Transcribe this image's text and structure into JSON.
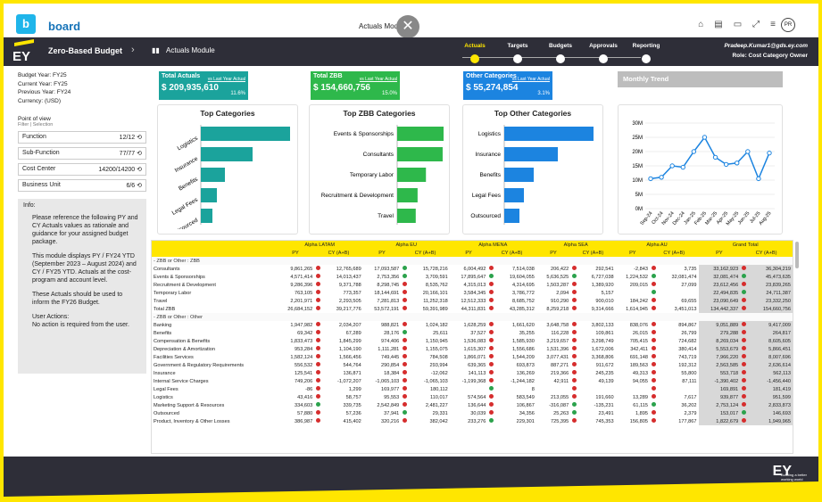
{
  "app": {
    "logo_letter": "b",
    "logo_text": "board",
    "window_title": "Actuals Module",
    "avatar": "PR"
  },
  "header": {
    "app_name": "Zero-Based Budget",
    "module": "Actuals Module",
    "ey": "EY",
    "user": "Pradeep.Kumar1@gds.ey.com",
    "role": "Role: Cost Category Owner",
    "steps": [
      "Actuals",
      "Targets",
      "Budgets",
      "Approvals",
      "Reporting"
    ],
    "active_step": 0
  },
  "meta": [
    "Budget Year:  FY25",
    "Current Year:  FY25",
    "Previous Year: FY24",
    "Currency: (USD)"
  ],
  "pov": {
    "title": "Point of view",
    "sub": "Filter | Selection"
  },
  "filters": [
    {
      "label": "Function",
      "value": "12/12"
    },
    {
      "label": "Sub-Function",
      "value": "77/77"
    },
    {
      "label": "Cost Center",
      "value": "14200/14200"
    },
    {
      "label": "Business Unit",
      "value": "6/6"
    }
  ],
  "info": {
    "title": "Info:",
    "paras": [
      "Please reference the following PY and CY Actuals values as rationale and guidance for your assigned budget package.",
      "This module displays PY / FY24 YTD (September 2023 – August 2024) and CY / FY25 YTD. Actuals at the cost-program and account level.",
      "These Actuals should be used to inform the FY26 Budget.",
      "User Actions:\nNo action is required from the user."
    ]
  },
  "kpis": [
    {
      "title": "Total Actuals",
      "sub": "vs Last Year Actual",
      "value": "$ 209,935,610",
      "pct": "11.6%",
      "color": "#1ba39c"
    },
    {
      "title": "Total ZBB",
      "sub": "vs Last Year Actual",
      "value": "$ 154,660,756",
      "pct": "15.0%",
      "color": "#2eb84b"
    },
    {
      "title": "Other Categories",
      "sub": "vs Last Year Actual",
      "value": "$ 55,274,854",
      "pct": "3.1%",
      "color": "#1c84e0"
    }
  ],
  "trend_title": "Monthly Trend",
  "charts": [
    {
      "title": "Top Categories",
      "color": "#1ba39c",
      "rotated": true,
      "categories": [
        "Logistics",
        "Insurance",
        "Benefits",
        "Legal Fees",
        "Outsourced"
      ],
      "values": [
        100,
        58,
        27,
        18,
        13
      ]
    },
    {
      "title": "Top ZBB Categories",
      "color": "#2eb84b",
      "rotated": false,
      "categories": [
        "Events & Sponsorships",
        "Consultants",
        "Temporary Labor",
        "Recruitment & Development",
        "Travel"
      ],
      "values": [
        100,
        98,
        62,
        44,
        40
      ]
    },
    {
      "title": "Top Other Categories",
      "color": "#1c84e0",
      "rotated": false,
      "categories": [
        "Logistics",
        "Insurance",
        "Benefits",
        "Legal Fees",
        "Outsourced"
      ],
      "values": [
        100,
        60,
        33,
        22,
        17
      ]
    }
  ],
  "chart_data": {
    "type": "line",
    "title": "Monthly Trend",
    "x": [
      "Sep-24",
      "Oct-24",
      "Nov-24",
      "Dec-24",
      "Jan-25",
      "Feb-25",
      "Mar-25",
      "Apr-25",
      "May-25",
      "Jun-25",
      "Jul-25",
      "Aug-25"
    ],
    "y_ticks": [
      "30M",
      "25M",
      "20M",
      "15M",
      "10M",
      "5M",
      "0M"
    ],
    "ylim": [
      0,
      30
    ],
    "series": [
      {
        "values": [
          10.5,
          11,
          15,
          14.5,
          20,
          25,
          18,
          15.5,
          16,
          20,
          10.5,
          19.5
        ],
        "color": "#1c84e0"
      }
    ]
  },
  "table": {
    "groups": [
      "Alpha LATAM",
      "Alpha EU",
      "Alpha MENA",
      "Alpha SEA",
      "Alpha AU",
      "Grand Total"
    ],
    "sub": [
      "PY",
      "CY (A+B)"
    ],
    "sections": [
      {
        "title": "-  ZBB or Other : ZBB",
        "rows": [
          [
            "Consultants",
            "9,861,265",
            "r",
            "12,765,689",
            "17,093,587",
            "g",
            "15,728,216",
            "6,004,492",
            "r",
            "7,514,038",
            "206,422",
            "r",
            "292,541",
            "-2,843",
            "r",
            "3,735",
            "33,162,923",
            "r",
            "36,304,219"
          ],
          [
            "Events & Sponsorships",
            "4,571,414",
            "r",
            "14,013,437",
            "2,753,356",
            "g",
            "3,709,591",
            "17,895,647",
            "g",
            "19,604,055",
            "5,636,525",
            "g",
            "6,727,038",
            "1,224,532",
            "g",
            "32,081,474",
            "32,081,474",
            "g",
            "45,473,635"
          ],
          [
            "Recruitment & Development",
            "9,286,396",
            "r",
            "9,371,788",
            "8,298,745",
            "r",
            "8,535,762",
            "4,315,013",
            "r",
            "4,314,695",
            "1,503,287",
            "r",
            "1,389,920",
            "209,015",
            "r",
            "27,099",
            "23,612,456",
            "r",
            "23,839,265"
          ],
          [
            "Temporary Labor",
            "763,105",
            "r",
            "773,357",
            "18,144,691",
            "r",
            "20,166,101",
            "3,584,345",
            "r",
            "3,786,772",
            "2,094",
            "r",
            "5,157",
            "",
            "g",
            "",
            "22,494,835",
            "g",
            "24,711,387"
          ],
          [
            "Travel",
            "2,201,971",
            "r",
            "2,293,505",
            "7,281,813",
            "r",
            "11,252,318",
            "12,512,333",
            "r",
            "8,685,752",
            "910,290",
            "r",
            "900,010",
            "184,242",
            "r",
            "69,655",
            "23,090,649",
            "r",
            "23,332,250"
          ],
          [
            "Total ZBB",
            "26,684,152",
            "r",
            "39,217,776",
            "53,572,191",
            "r",
            "59,391,989",
            "44,311,831",
            "r",
            "43,285,312",
            "8,259,218",
            "r",
            "9,314,666",
            "1,614,945",
            "r",
            "3,451,013",
            "134,442,337",
            "r",
            "154,660,756"
          ]
        ]
      },
      {
        "title": "-  ZBB or Other : Other",
        "rows": [
          [
            "Banking",
            "1,947,982",
            "r",
            "2,034,207",
            "988,821",
            "r",
            "1,024,182",
            "1,628,259",
            "r",
            "1,661,620",
            "3,648,758",
            "r",
            "3,802,133",
            "838,076",
            "r",
            "894,867",
            "9,051,889",
            "r",
            "9,417,009"
          ],
          [
            "Benefits",
            "69,342",
            "r",
            "67,289",
            "28,176",
            "g",
            "25,611",
            "37,527",
            "r",
            "35,255",
            "116,228",
            "r",
            "109,861",
            "26,015",
            "r",
            "26,799",
            "279,288",
            "r",
            "264,817"
          ],
          [
            "Compensation & Benefits",
            "1,833,473",
            "r",
            "1,845,299",
            "974,406",
            "r",
            "1,150,945",
            "1,536,083",
            "r",
            "1,585,930",
            "3,219,657",
            "r",
            "3,298,749",
            "705,415",
            "r",
            "724,682",
            "8,269,034",
            "r",
            "8,605,605"
          ],
          [
            "Depreciation & Amortization",
            "953,284",
            "r",
            "1,104,190",
            "1,111,281",
            "r",
            "1,155,075",
            "1,615,307",
            "r",
            "1,556,686",
            "1,531,396",
            "r",
            "1,672,006",
            "342,411",
            "r",
            "380,414",
            "5,553,679",
            "r",
            "5,866,451"
          ],
          [
            "Facilities Services",
            "1,582,124",
            "r",
            "1,566,456",
            "749,445",
            "r",
            "784,508",
            "1,866,071",
            "r",
            "1,544,209",
            "3,077,431",
            "r",
            "3,368,806",
            "691,148",
            "r",
            "743,719",
            "7,966,220",
            "r",
            "8,007,696"
          ],
          [
            "Government & Regulatory Requirements",
            "556,532",
            "r",
            "544,764",
            "290,854",
            "r",
            "293,994",
            "639,365",
            "r",
            "693,873",
            "887,271",
            "r",
            "911,672",
            "189,563",
            "r",
            "192,312",
            "2,563,585",
            "r",
            "2,636,614"
          ],
          [
            "Insurance",
            "125,541",
            "r",
            "136,871",
            "18,384",
            "r",
            "-12,062",
            "141,113",
            "r",
            "136,269",
            "219,366",
            "r",
            "245,235",
            "49,313",
            "r",
            "55,800",
            "553,718",
            "r",
            "562,113"
          ],
          [
            "Internal Service Charges",
            "749,206",
            "r",
            "-1,072,207",
            "-1,065,103",
            "r",
            "-1,065,103",
            "-1,199,368",
            "r",
            "-1,244,182",
            "42,911",
            "r",
            "49,139",
            "94,055",
            "r",
            "87,111",
            "-1,390,402",
            "r",
            "-1,456,440"
          ],
          [
            "Legal Fees",
            "-86",
            "r",
            "1,299",
            "169,977",
            "r",
            "180,112",
            "",
            "g",
            "8",
            "",
            "r",
            "",
            "",
            "r",
            "",
            "169,891",
            "r",
            "181,419"
          ],
          [
            "Logistics",
            "43,416",
            "r",
            "58,757",
            "95,553",
            "r",
            "110,017",
            "574,564",
            "r",
            "583,549",
            "213,055",
            "r",
            "191,660",
            "13,289",
            "r",
            "7,617",
            "939,877",
            "r",
            "951,599"
          ],
          [
            "Marketing Support & Resources",
            "334,603",
            "g",
            "339,735",
            "2,542,849",
            "r",
            "2,481,227",
            "136,644",
            "r",
            "106,867",
            "-316,087",
            "g",
            "-135,231",
            "61,115",
            "g",
            "36,202",
            "2,753,124",
            "r",
            "2,833,873"
          ],
          [
            "Outsourced",
            "57,880",
            "r",
            "57,236",
            "37,941",
            "g",
            "29,331",
            "30,039",
            "r",
            "34,356",
            "25,263",
            "g",
            "23,491",
            "1,895",
            "r",
            "2,379",
            "153,017",
            "g",
            "146,693"
          ],
          [
            "Product, Inventory & Other Losses",
            "386,987",
            "r",
            "415,402",
            "320,216",
            "r",
            "382,042",
            "233,276",
            "g",
            "229,301",
            "725,395",
            "r",
            "745,353",
            "156,805",
            "r",
            "177,867",
            "1,822,679",
            "r",
            "1,949,965"
          ]
        ]
      }
    ]
  },
  "footer": {
    "ey": "EY",
    "tag": "Building a better working world"
  }
}
